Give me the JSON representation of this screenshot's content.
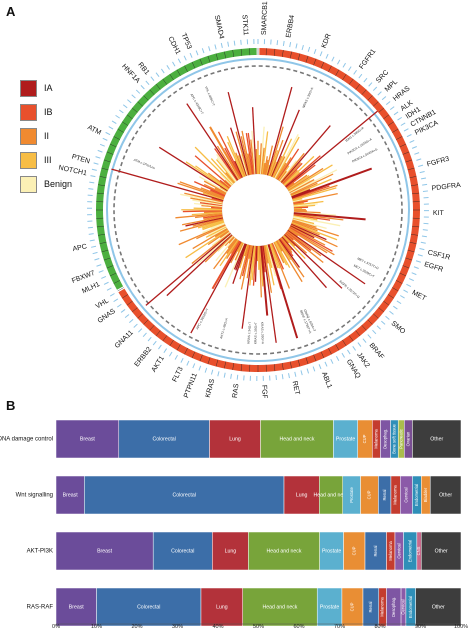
{
  "panelA": {
    "letter": "A",
    "legend": [
      {
        "label": "IA",
        "color": "#b01c1c"
      },
      {
        "label": "IB",
        "color": "#e8502c"
      },
      {
        "label": "II",
        "color": "#f08a30"
      },
      {
        "label": "III",
        "color": "#f7bd45"
      },
      {
        "label": "Benign",
        "color": "#fbf0b5"
      }
    ],
    "ring_colors": {
      "oncogene": "#e8502c",
      "tumor_suppressor": "#4caf3f",
      "inner_ring": "#8fc6e8"
    },
    "genes": [
      {
        "name": "SMARCB1",
        "angle": 2
      },
      {
        "name": "ERBB4",
        "angle": 10
      },
      {
        "name": "KDR",
        "angle": 22
      },
      {
        "name": "FGFR1",
        "angle": 36
      },
      {
        "name": "SRC",
        "angle": 43
      },
      {
        "name": "MPL",
        "angle": 47
      },
      {
        "name": "HRAS",
        "angle": 51
      },
      {
        "name": "ALK",
        "angle": 55
      },
      {
        "name": "IDH1",
        "angle": 58
      },
      {
        "name": "CTNNB1",
        "angle": 61
      },
      {
        "name": "PIK3CA",
        "angle": 64
      },
      {
        "name": "FGFR3",
        "angle": 75
      },
      {
        "name": "PDGFRA",
        "angle": 83
      },
      {
        "name": "KIT",
        "angle": 91
      },
      {
        "name": "CSF1R",
        "angle": 104
      },
      {
        "name": "EGFR",
        "angle": 108
      },
      {
        "name": "MET",
        "angle": 118
      },
      {
        "name": "SMO",
        "angle": 130
      },
      {
        "name": "BRAF",
        "angle": 140
      },
      {
        "name": "JAK2",
        "angle": 145
      },
      {
        "name": "GNAQ",
        "angle": 149
      },
      {
        "name": "ABL1",
        "angle": 158
      },
      {
        "name": "RET",
        "angle": 168
      },
      {
        "name": "FGFR2",
        "angle": 178
      },
      {
        "name": "HRAS",
        "angle": 187
      },
      {
        "name": "KRAS",
        "angle": 195
      },
      {
        "name": "PTPN11",
        "angle": 201
      },
      {
        "name": "FLT3",
        "angle": 206
      },
      {
        "name": "AKT1",
        "angle": 213
      },
      {
        "name": "ERBB2",
        "angle": 218
      },
      {
        "name": "GNA11",
        "angle": 226
      },
      {
        "name": "GNAS",
        "angle": 235
      },
      {
        "name": "VHL",
        "angle": 239
      },
      {
        "name": "MLH1",
        "angle": 245
      },
      {
        "name": "FBXW7",
        "angle": 249
      },
      {
        "name": "APC",
        "angle": 258
      },
      {
        "name": "NOTCH1",
        "angle": 282
      },
      {
        "name": "PTEN",
        "angle": 286
      },
      {
        "name": "ATM",
        "angle": 296
      },
      {
        "name": "HNF1A",
        "angle": 317
      },
      {
        "name": "RB1",
        "angle": 321
      },
      {
        "name": "CDH1",
        "angle": 333
      },
      {
        "name": "TP53",
        "angle": 337
      },
      {
        "name": "SMAD4",
        "angle": 348
      },
      {
        "name": "STK11",
        "angle": 356
      }
    ],
    "annotations": [
      {
        "text": "APC c.4348C>T",
        "angle": 330
      },
      {
        "text": "VHL c.499C>T",
        "angle": 337
      },
      {
        "text": "NRAS c.35G>A",
        "angle": 24
      },
      {
        "text": "IDH1 c.395G>A",
        "angle": 52
      },
      {
        "text": "PIK3CA c.1633G>A",
        "angle": 58
      },
      {
        "text": "PIK3CA c.3140A>G",
        "angle": 63
      },
      {
        "text": "ATM c.1Pro/Leu",
        "angle": 292
      },
      {
        "text": "MET c.3757T>G",
        "angle": 116
      },
      {
        "text": "MET c.3029C>T",
        "angle": 120
      },
      {
        "text": "EGFR c.2573T>G",
        "angle": 131
      },
      {
        "text": "KRAS c.35G>A",
        "angle": 178
      },
      {
        "text": "KRAS c.35G>T",
        "angle": 181
      },
      {
        "text": "KRAS c.34G>T",
        "angle": 184
      },
      {
        "text": "AKT1 c.49G>A",
        "angle": 196
      },
      {
        "text": "APC c.3916G>T",
        "angle": 207
      },
      {
        "text": "BRAF c.1799T>A",
        "angle": 157
      },
      {
        "text": "GNAQ c.626A>T",
        "angle": 155
      }
    ]
  },
  "panelB": {
    "letter": "B",
    "chart_data": {
      "type": "bar",
      "orientation": "horizontal-stacked-100",
      "xlim": [
        0,
        100
      ],
      "xticks": [
        "0%",
        "10%",
        "20%",
        "30%",
        "40%",
        "50%",
        "60%",
        "70%",
        "80%",
        "90%",
        "100%"
      ],
      "rows": [
        {
          "name": "DNA damage control",
          "segments": [
            {
              "label": "Breast",
              "value": 15.5,
              "color": "#6b4c9a"
            },
            {
              "label": "Colorectal",
              "value": 22.4,
              "color": "#3c6ea8"
            },
            {
              "label": "Lung",
              "value": 12.6,
              "color": "#b3323a"
            },
            {
              "label": "Head and neck",
              "value": 18.0,
              "color": "#78a43a"
            },
            {
              "label": "Prostate",
              "value": 6.0,
              "color": "#5bb0cf"
            },
            {
              "label": "CUP",
              "value": 3.6,
              "color": "#e98e34"
            },
            {
              "label": "Melanoma",
              "value": 2.0,
              "color": "#c43c2f"
            },
            {
              "label": "Oesophag.",
              "value": 2.5,
              "color": "#7e56a3"
            },
            {
              "label": "Bone soft tissue",
              "value": 1.9,
              "color": "#2f8fb8"
            },
            {
              "label": "Pancreatic",
              "value": 1.5,
              "color": "#aabd4c"
            },
            {
              "label": "Ovarian",
              "value": 2.0,
              "color": "#7a4f93"
            },
            {
              "label": "Other",
              "value": 12.0,
              "color": "#3d3d3d"
            }
          ]
        },
        {
          "name": "Wnt signalling",
          "segments": [
            {
              "label": "Breast",
              "value": 7.0,
              "color": "#6b4c9a"
            },
            {
              "label": "Colorectal",
              "value": 49.3,
              "color": "#3c6ea8"
            },
            {
              "label": "Lung",
              "value": 8.7,
              "color": "#b3323a"
            },
            {
              "label": "Head and neck",
              "value": 5.8,
              "color": "#78a43a"
            },
            {
              "label": "Prostate",
              "value": 4.4,
              "color": "#5bb0cf"
            },
            {
              "label": "CUP",
              "value": 4.4,
              "color": "#e98e34"
            },
            {
              "label": "Renal",
              "value": 3.1,
              "color": "#3c6ea8"
            },
            {
              "label": "Melanoma",
              "value": 2.3,
              "color": "#c43c2f"
            },
            {
              "label": "Cervical",
              "value": 3.0,
              "color": "#8b5aa8"
            },
            {
              "label": "Endometrial",
              "value": 2.2,
              "color": "#2f8fb8"
            },
            {
              "label": "Bladder",
              "value": 2.2,
              "color": "#e98e34"
            },
            {
              "label": "Other",
              "value": 7.6,
              "color": "#3d3d3d"
            }
          ]
        },
        {
          "name": "AKT-PI3K",
          "segments": [
            {
              "label": "Breast",
              "value": 24.0,
              "color": "#6b4c9a"
            },
            {
              "label": "Colorectal",
              "value": 14.6,
              "color": "#3c6ea8"
            },
            {
              "label": "Lung",
              "value": 8.9,
              "color": "#b3323a"
            },
            {
              "label": "Head and neck",
              "value": 17.6,
              "color": "#78a43a"
            },
            {
              "label": "Prostate",
              "value": 5.9,
              "color": "#5bb0cf"
            },
            {
              "label": "CUP",
              "value": 5.3,
              "color": "#e98e34"
            },
            {
              "label": "Renal",
              "value": 5.3,
              "color": "#3c6ea8"
            },
            {
              "label": "Melanoma",
              "value": 2.1,
              "color": "#c43c2f"
            },
            {
              "label": "Cervical",
              "value": 2.1,
              "color": "#8b5aa8"
            },
            {
              "label": "Endometrial",
              "value": 3.3,
              "color": "#2f8fb8"
            },
            {
              "label": "CNS",
              "value": 1.1,
              "color": "#c96a8c"
            },
            {
              "label": "Other",
              "value": 9.8,
              "color": "#3d3d3d"
            }
          ]
        },
        {
          "name": "RAS-RAF",
          "segments": [
            {
              "label": "Breast",
              "value": 10.0,
              "color": "#6b4c9a"
            },
            {
              "label": "Colorectal",
              "value": 25.8,
              "color": "#3c6ea8"
            },
            {
              "label": "Lung",
              "value": 10.3,
              "color": "#b3323a"
            },
            {
              "label": "Head and neck",
              "value": 18.4,
              "color": "#78a43a"
            },
            {
              "label": "Prostate",
              "value": 6.1,
              "color": "#5bb0cf"
            },
            {
              "label": "CUP",
              "value": 5.2,
              "color": "#e98e34"
            },
            {
              "label": "Renal",
              "value": 3.9,
              "color": "#3c6ea8"
            },
            {
              "label": "Melanoma",
              "value": 1.9,
              "color": "#c43c2f"
            },
            {
              "label": "Oesophag.",
              "value": 3.6,
              "color": "#7e56a3"
            },
            {
              "label": "Cervical",
              "value": 1.2,
              "color": "#8b5aa8"
            },
            {
              "label": "Endometrial",
              "value": 2.4,
              "color": "#2f8fb8"
            },
            {
              "label": "Other",
              "value": 11.2,
              "color": "#3d3d3d"
            }
          ]
        }
      ]
    }
  }
}
